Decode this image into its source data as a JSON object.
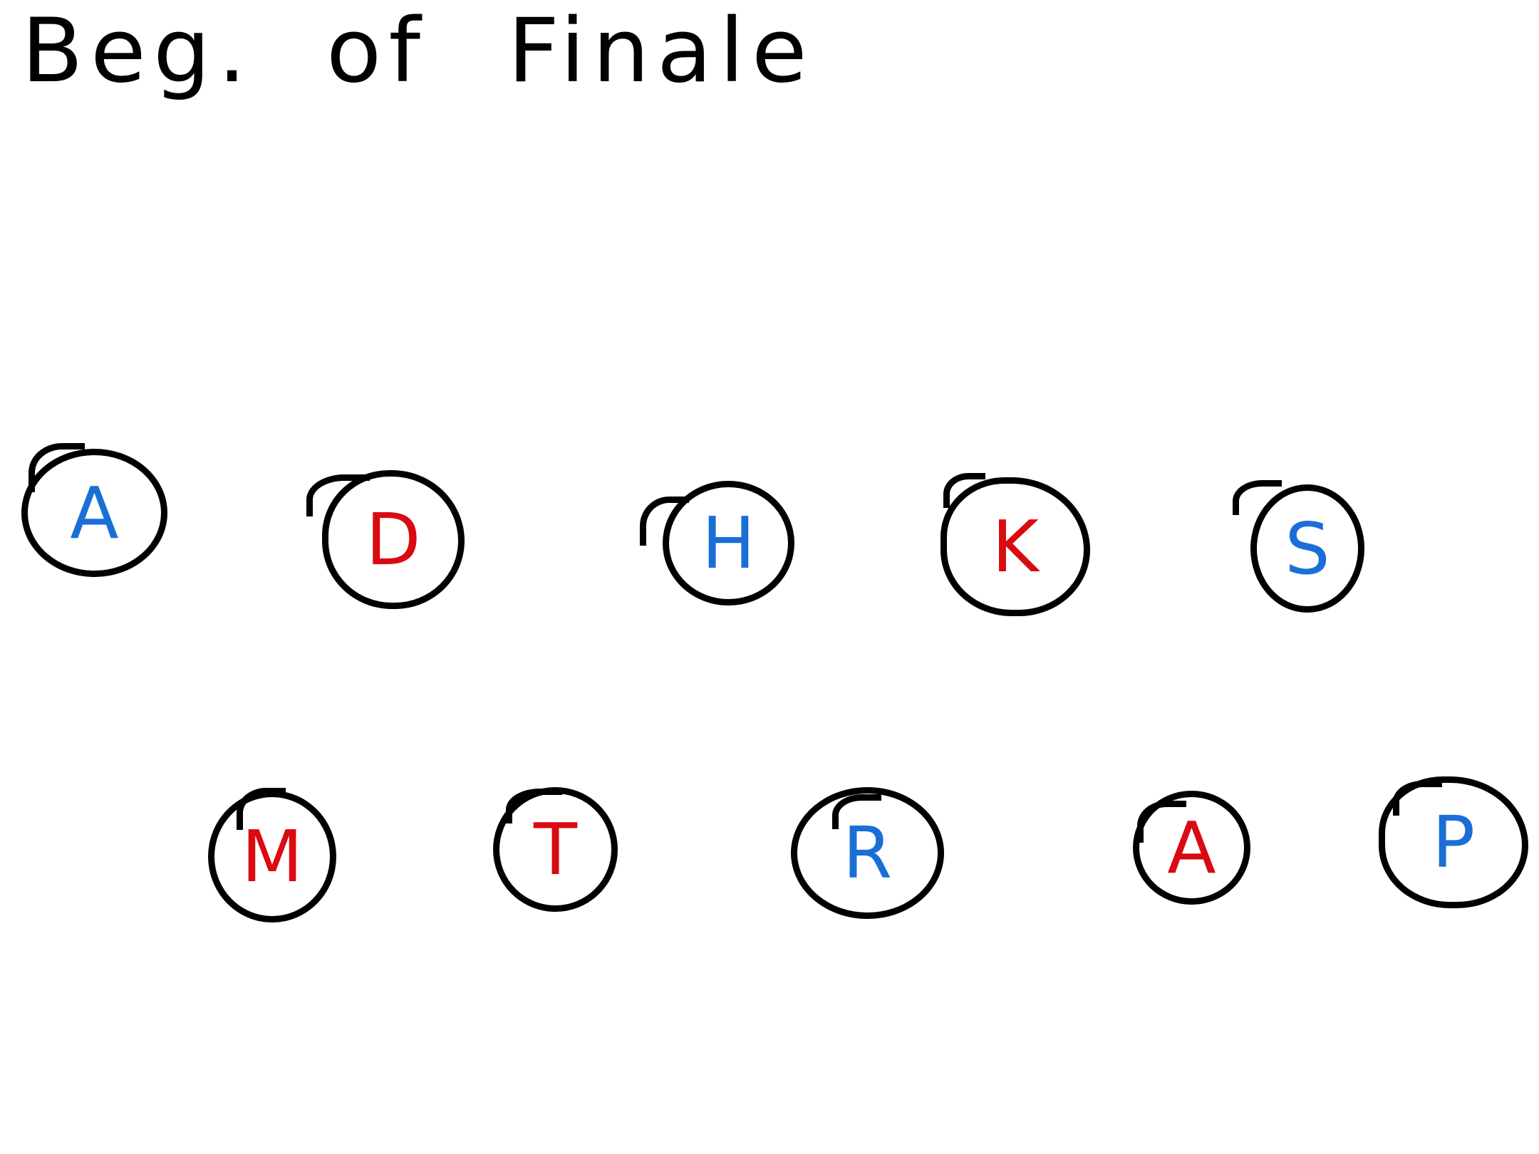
{
  "title": {
    "word1": "Beg.",
    "word2": "of",
    "word3": "Finale"
  },
  "colors": {
    "stroke": "#000000",
    "red": "#d90a12",
    "blue": "#1a6fd6"
  },
  "nodes": [
    {
      "id": "node-1",
      "label": "A",
      "color": "blue"
    },
    {
      "id": "node-2",
      "label": "D",
      "color": "red"
    },
    {
      "id": "node-3",
      "label": "H",
      "color": "blue"
    },
    {
      "id": "node-4",
      "label": "K",
      "color": "red"
    },
    {
      "id": "node-5",
      "label": "S",
      "color": "blue"
    },
    {
      "id": "node-6",
      "label": "M",
      "color": "red"
    },
    {
      "id": "node-7",
      "label": "T",
      "color": "red"
    },
    {
      "id": "node-8",
      "label": "R",
      "color": "blue"
    },
    {
      "id": "node-9",
      "label": "A",
      "color": "red"
    },
    {
      "id": "node-10",
      "label": "P",
      "color": "blue"
    }
  ]
}
